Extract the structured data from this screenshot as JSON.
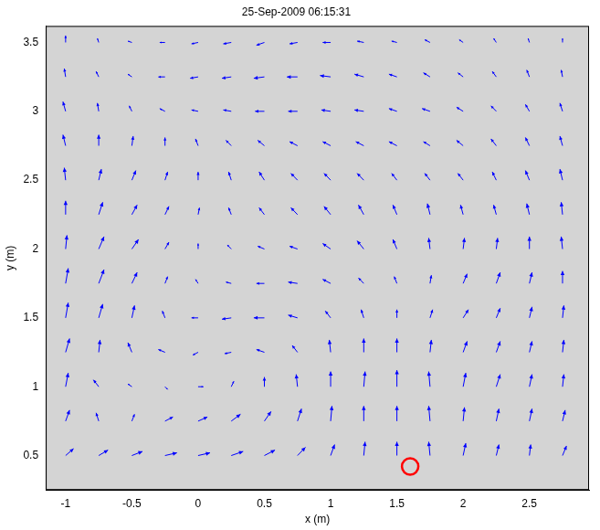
{
  "chart_data": {
    "type": "quiver",
    "title": "25-Sep-2009 06:15:31",
    "x_label": "x (m)",
    "y_label": "y (m)",
    "xlim": [
      -1.15,
      2.95
    ],
    "ylim": [
      0.25,
      3.62
    ],
    "xticks": [
      -1,
      -0.5,
      0,
      0.5,
      1,
      1.5,
      2,
      2.5
    ],
    "yticks": [
      0.5,
      1,
      1.5,
      2,
      2.5,
      3,
      3.5
    ],
    "grid": false,
    "vectors": {
      "color": "#0000ff",
      "x": [
        -1,
        -0.75,
        -0.5,
        -0.25,
        0,
        0.25,
        0.5,
        0.75,
        1,
        1.25,
        1.5,
        1.75,
        2,
        2.25,
        2.5,
        2.75
      ],
      "y": [
        0.5,
        0.75,
        1,
        1.25,
        1.5,
        1.75,
        2,
        2.25,
        2.5,
        2.75,
        3,
        3.25,
        3.5
      ],
      "u": [
        [
          0.06,
          0.07,
          0.08,
          0.09,
          0.09,
          0.09,
          0.08,
          0.06,
          0.03,
          0.01,
          0.0,
          -0.01,
          0.02,
          0.02,
          0.01,
          0.03
        ],
        [
          0.03,
          -0.02,
          0.02,
          0.06,
          0.07,
          0.07,
          0.05,
          0.03,
          0.01,
          0.0,
          0.0,
          -0.01,
          0.01,
          0.02,
          0.02,
          0.02
        ],
        [
          0.02,
          -0.04,
          -0.03,
          0.02,
          0.04,
          0.02,
          0.0,
          -0.01,
          0.0,
          0.01,
          0.0,
          -0.01,
          0.02,
          0.03,
          0.02,
          0.01
        ],
        [
          0.03,
          0.01,
          -0.03,
          -0.05,
          -0.04,
          -0.05,
          -0.06,
          -0.04,
          -0.01,
          0.0,
          0.0,
          0.01,
          0.03,
          0.03,
          0.02,
          0.01
        ],
        [
          0.02,
          0.03,
          0.02,
          -0.02,
          -0.05,
          -0.07,
          -0.08,
          -0.07,
          -0.04,
          -0.02,
          0.0,
          0.02,
          0.04,
          0.03,
          0.02,
          0.01
        ],
        [
          0.02,
          0.04,
          0.04,
          0.02,
          -0.02,
          -0.04,
          -0.06,
          -0.07,
          -0.06,
          -0.04,
          -0.02,
          0.01,
          0.03,
          0.03,
          0.02,
          0.0
        ],
        [
          0.01,
          0.04,
          0.05,
          0.03,
          0.0,
          -0.03,
          -0.05,
          -0.06,
          -0.06,
          -0.05,
          -0.03,
          -0.01,
          0.01,
          0.01,
          0.0,
          -0.01
        ],
        [
          0.0,
          0.03,
          0.04,
          0.03,
          0.01,
          -0.02,
          -0.04,
          -0.05,
          -0.05,
          -0.04,
          -0.03,
          -0.02,
          -0.02,
          -0.02,
          -0.02,
          -0.01
        ],
        [
          -0.01,
          0.02,
          0.03,
          0.02,
          0.0,
          -0.02,
          -0.04,
          -0.05,
          -0.05,
          -0.05,
          -0.04,
          -0.04,
          -0.04,
          -0.03,
          -0.03,
          -0.02
        ],
        [
          -0.02,
          0.0,
          0.01,
          0.0,
          -0.02,
          -0.04,
          -0.05,
          -0.06,
          -0.06,
          -0.06,
          -0.06,
          -0.05,
          -0.05,
          -0.04,
          -0.03,
          -0.02
        ],
        [
          -0.02,
          -0.01,
          -0.02,
          -0.04,
          -0.05,
          -0.06,
          -0.07,
          -0.07,
          -0.07,
          -0.07,
          -0.06,
          -0.06,
          -0.05,
          -0.04,
          -0.03,
          -0.02
        ],
        [
          -0.01,
          -0.02,
          -0.03,
          -0.05,
          -0.06,
          -0.07,
          -0.08,
          -0.08,
          -0.08,
          -0.07,
          -0.06,
          -0.05,
          -0.04,
          -0.03,
          -0.02,
          -0.01
        ],
        [
          0.0,
          -0.01,
          -0.03,
          -0.04,
          -0.05,
          -0.06,
          -0.06,
          -0.06,
          -0.06,
          -0.05,
          -0.04,
          -0.04,
          -0.03,
          -0.02,
          -0.01,
          0.0
        ]
      ],
      "v": [
        [
          0.05,
          0.04,
          0.03,
          0.02,
          0.02,
          0.03,
          0.04,
          0.06,
          0.08,
          0.1,
          0.1,
          0.1,
          0.09,
          0.08,
          0.08,
          0.07
        ],
        [
          0.08,
          0.06,
          0.05,
          0.03,
          0.03,
          0.05,
          0.07,
          0.09,
          0.11,
          0.11,
          0.11,
          0.11,
          0.1,
          0.09,
          0.09,
          0.08
        ],
        [
          0.1,
          0.05,
          0.02,
          -0.02,
          0.0,
          0.04,
          0.07,
          0.09,
          0.11,
          0.11,
          0.12,
          0.11,
          0.1,
          0.09,
          0.09,
          0.09
        ],
        [
          0.1,
          0.09,
          0.07,
          0.02,
          -0.02,
          -0.01,
          0.02,
          0.05,
          0.09,
          0.1,
          0.1,
          0.09,
          0.08,
          0.08,
          0.08,
          0.09
        ],
        [
          0.11,
          0.1,
          0.09,
          0.05,
          0.0,
          -0.01,
          0.0,
          0.02,
          0.05,
          0.06,
          0.06,
          0.06,
          0.06,
          0.07,
          0.08,
          0.09
        ],
        [
          0.11,
          0.1,
          0.08,
          0.05,
          0.03,
          0.01,
          0.0,
          0.01,
          0.03,
          0.04,
          0.05,
          0.06,
          0.07,
          0.08,
          0.08,
          0.09
        ],
        [
          0.1,
          0.09,
          0.07,
          0.05,
          0.04,
          0.03,
          0.02,
          0.02,
          0.04,
          0.06,
          0.07,
          0.08,
          0.08,
          0.08,
          0.09,
          0.09
        ],
        [
          0.1,
          0.09,
          0.07,
          0.06,
          0.05,
          0.05,
          0.05,
          0.05,
          0.06,
          0.07,
          0.07,
          0.08,
          0.07,
          0.07,
          0.08,
          0.09
        ],
        [
          0.09,
          0.08,
          0.07,
          0.06,
          0.06,
          0.06,
          0.06,
          0.05,
          0.05,
          0.05,
          0.05,
          0.05,
          0.05,
          0.06,
          0.07,
          0.08
        ],
        [
          0.08,
          0.08,
          0.07,
          0.06,
          0.05,
          0.04,
          0.04,
          0.03,
          0.03,
          0.03,
          0.03,
          0.03,
          0.04,
          0.05,
          0.06,
          0.07
        ],
        [
          0.07,
          0.06,
          0.04,
          0.02,
          0.01,
          0.01,
          0.0,
          0.0,
          0.01,
          0.01,
          0.02,
          0.02,
          0.03,
          0.04,
          0.05,
          0.06
        ],
        [
          0.06,
          0.04,
          0.02,
          0.0,
          -0.01,
          -0.01,
          -0.01,
          0.0,
          0.01,
          0.02,
          0.02,
          0.03,
          0.03,
          0.04,
          0.05,
          0.05
        ],
        [
          0.05,
          0.03,
          0.01,
          0.0,
          -0.01,
          -0.01,
          -0.02,
          -0.01,
          0.0,
          0.01,
          0.01,
          0.02,
          0.02,
          0.03,
          0.03,
          0.03
        ]
      ]
    },
    "points": {
      "color": "#ff0000",
      "marker": "circle",
      "x": [
        1.6
      ],
      "y": [
        0.42
      ]
    }
  }
}
